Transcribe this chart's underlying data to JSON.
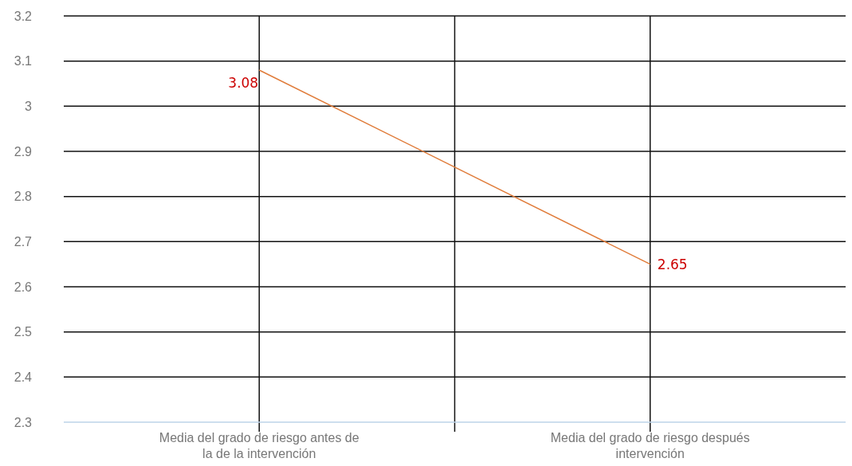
{
  "chart_data": {
    "type": "line",
    "categories": [
      "Media del grado de riesgo antes de la de la intervención",
      "Media del grado de riesgo después intervención"
    ],
    "series": [
      {
        "color": "#e07b39",
        "values": [
          3.08,
          2.65
        ]
      }
    ],
    "ylim": [
      2.3,
      3.2
    ],
    "yticks": [
      2.3,
      2.4,
      2.5,
      2.6,
      2.7,
      2.8,
      2.9,
      {
        "value": 3,
        "label": "3"
      },
      3.1,
      3.2
    ],
    "grid": true,
    "data_labels": true,
    "marker": "none"
  }
}
